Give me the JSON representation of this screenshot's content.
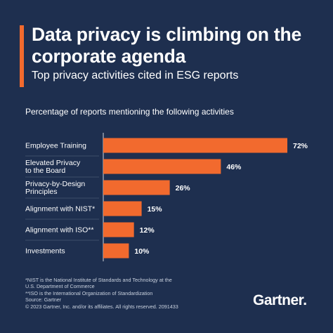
{
  "header": {
    "title": "Data privacy is climbing on the corporate agenda",
    "subtitle": "Top privacy activities cited in ESG reports",
    "accent_color": "#f26a2e"
  },
  "chart_data": {
    "type": "bar",
    "orientation": "horizontal",
    "title": "Percentage of reports mentioning the following activities",
    "categories": [
      [
        "Employee Training"
      ],
      [
        "Elevated Privacy",
        "to the Board"
      ],
      [
        "Privacy-by-Design",
        "Principles"
      ],
      [
        "Alignment with NIST*"
      ],
      [
        "Alignment with ISO**"
      ],
      [
        "Investments"
      ]
    ],
    "values": [
      72,
      46,
      26,
      15,
      12,
      10
    ],
    "value_labels": [
      "72%",
      "46%",
      "26%",
      "15%",
      "12%",
      "10%"
    ],
    "unit": "%",
    "xlim": [
      0,
      72
    ],
    "bar_color": "#f26a2e",
    "background": "#1e2f4f",
    "grid": false
  },
  "footnotes": [
    "*NIST is the National Institute of Standards and Technology at the",
    "U.S. Department of Commerce",
    "**ISO is the International Organization of Standardization",
    "Source: Gartner",
    "© 2023 Gartner, Inc. and/or its affiliates. All rights reserved. 2091433"
  ],
  "logo": {
    "text": "Gartner",
    "mark": "."
  }
}
